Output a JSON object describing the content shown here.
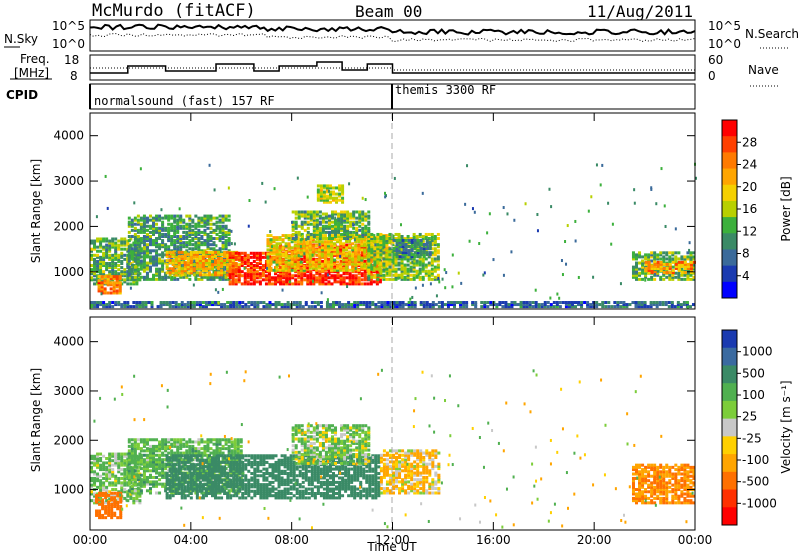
{
  "header": {
    "title_left": "McMurdo (fitACF)",
    "title_center": "Beam 00",
    "title_right": "11/Aug/2011"
  },
  "top_panels": {
    "nsky_label": "N.Sky",
    "nsky_ticks": [
      "10^5",
      "10^0"
    ],
    "nsearch_label": "N.Search",
    "nsearch_ticks": [
      "10^5",
      "10^0"
    ],
    "freq_label_1": "Freq.",
    "freq_label_2": "[MHz]",
    "freq_ticks": [
      "18",
      "8"
    ],
    "nave_label": "Nave",
    "nave_ticks": [
      "60",
      "0"
    ],
    "cpid_label": "CPID",
    "cpid_segments": [
      {
        "label": "normalsound (fast) 157 RF",
        "start_hour": 0
      },
      {
        "label": "themis 3300 RF",
        "start_hour": 12
      }
    ]
  },
  "power_colorbar": {
    "label": "Power [dB]",
    "ticks": [
      "28",
      "24",
      "20",
      "16",
      "12",
      "8",
      "4"
    ],
    "colors": [
      "#ff0000",
      "#ff4000",
      "#ff7a00",
      "#ffa500",
      "#f5d000",
      "#b8d000",
      "#3cb03c",
      "#3a8a66",
      "#3a6a9a",
      "#1a3ab0",
      "#0000ff"
    ]
  },
  "velocity_colorbar": {
    "label": "Velocity [m s⁻¹]",
    "ticks": [
      "1000",
      "500",
      "100",
      "25",
      "-25",
      "-100",
      "-500",
      "-1000"
    ],
    "colors": [
      "#1a3ab0",
      "#3a6aa0",
      "#3a8a66",
      "#50b050",
      "#7ccd3a",
      "#c8c8c8",
      "#ffd000",
      "#ffa500",
      "#ff7000",
      "#ff3000",
      "#ff0000"
    ]
  },
  "chart_data": [
    {
      "type": "heatmap",
      "name": "power",
      "ylabel": "Slant Range [km]",
      "xlabel": "",
      "x_ticks": [
        "00:00",
        "04:00",
        "08:00",
        "12:00",
        "16:00",
        "20:00",
        "00:00"
      ],
      "y_ticks": [
        "1000",
        "2000",
        "3000",
        "4000"
      ],
      "xlim_hours": [
        0,
        24
      ],
      "ylim_km": [
        180,
        4500
      ],
      "regions": [
        {
          "x0": 0.0,
          "x1": 2.0,
          "y0": 700,
          "y1": 1700,
          "value": 12
        },
        {
          "x0": 0.3,
          "x1": 1.2,
          "y0": 500,
          "y1": 900,
          "value": 24
        },
        {
          "x0": 1.5,
          "x1": 5.5,
          "y0": 800,
          "y1": 2200,
          "value": 10
        },
        {
          "x0": 3.0,
          "x1": 6.0,
          "y0": 900,
          "y1": 1400,
          "value": 20
        },
        {
          "x0": 5.5,
          "x1": 7.5,
          "y0": 700,
          "y1": 1400,
          "value": 28
        },
        {
          "x0": 7.5,
          "x1": 11.5,
          "y0": 700,
          "y1": 1600,
          "value": 28
        },
        {
          "x0": 7.0,
          "x1": 12.0,
          "y0": 1000,
          "y1": 1800,
          "value": 18
        },
        {
          "x0": 8.0,
          "x1": 11.0,
          "y0": 1700,
          "y1": 2300,
          "value": 12
        },
        {
          "x0": 9.0,
          "x1": 10.0,
          "y0": 2500,
          "y1": 2900,
          "value": 16
        },
        {
          "x0": 11.0,
          "x1": 13.8,
          "y0": 800,
          "y1": 1800,
          "value": 14
        },
        {
          "x0": 12.0,
          "x1": 13.5,
          "y0": 1300,
          "y1": 1700,
          "value": 8
        },
        {
          "x0": 21.5,
          "x1": 24.0,
          "y0": 800,
          "y1": 1400,
          "value": 12
        },
        {
          "x0": 22.0,
          "x1": 24.0,
          "y0": 950,
          "y1": 1200,
          "value": 22
        },
        {
          "x0": 0.0,
          "x1": 24.0,
          "y0": 200,
          "y1": 300,
          "value": 6
        }
      ]
    },
    {
      "type": "heatmap",
      "name": "velocity",
      "ylabel": "Slant Range [km]",
      "xlabel": "Time UT",
      "x_ticks": [
        "00:00",
        "04:00",
        "08:00",
        "12:00",
        "16:00",
        "20:00",
        "00:00"
      ],
      "y_ticks": [
        "1000",
        "2000",
        "3000",
        "4000"
      ],
      "xlim_hours": [
        0,
        24
      ],
      "ylim_km": [
        180,
        4500
      ],
      "regions": [
        {
          "x0": 0.0,
          "x1": 2.0,
          "y0": 700,
          "y1": 1700,
          "value": 80
        },
        {
          "x0": 0.2,
          "x1": 1.2,
          "y0": 400,
          "y1": 900,
          "value": -300
        },
        {
          "x0": 1.5,
          "x1": 6.0,
          "y0": 900,
          "y1": 2000,
          "value": 120
        },
        {
          "x0": 3.0,
          "x1": 11.5,
          "y0": 800,
          "y1": 1700,
          "value": 300
        },
        {
          "x0": 8.0,
          "x1": 11.0,
          "y0": 1500,
          "y1": 2300,
          "value": 60
        },
        {
          "x0": 11.5,
          "x1": 13.8,
          "y0": 900,
          "y1": 1800,
          "value": -60
        },
        {
          "x0": 21.5,
          "x1": 24.0,
          "y0": 700,
          "y1": 1500,
          "value": -200
        }
      ]
    }
  ]
}
